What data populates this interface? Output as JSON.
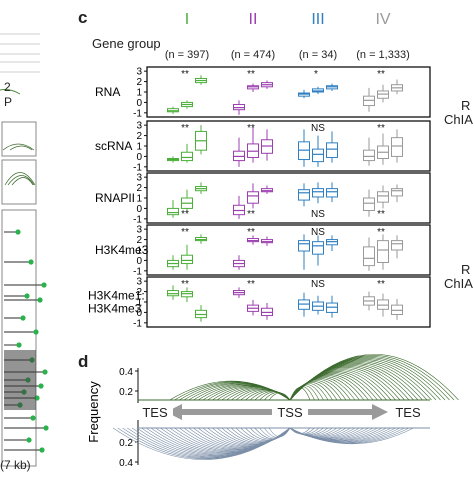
{
  "panel_c": {
    "letter": "c",
    "gene_group_label": "Gene group",
    "groups": [
      {
        "numeral": "I",
        "n_label": "(n = 397)",
        "color": "#4caf3a"
      },
      {
        "numeral": "II",
        "n_label": "(n = 474)",
        "color": "#9c3fb0"
      },
      {
        "numeral": "III",
        "n_label": "(n = 34)",
        "color": "#2f7fc1"
      },
      {
        "numeral": "IV",
        "n_label": "(n = 1,333)",
        "color": "#9a9a9a"
      }
    ],
    "right_labels": [
      "R",
      "ChIA",
      "R",
      "ChIA"
    ]
  },
  "panel_d": {
    "letter": "d",
    "ylabel": "Frequency",
    "yticks": [
      "0.4",
      "0.2",
      "0.2",
      "0.4"
    ],
    "tes_left": "TES",
    "tss": "TSS",
    "tes_right": "TES",
    "top_color": "#3d6b2f",
    "bottom_color": "#7c8fa8"
  },
  "left_panel": {
    "labels": [
      "2",
      "P",
      "(7 kb)"
    ],
    "dot_color": "#2bb24c"
  },
  "chart_data": {
    "type": "box",
    "groups": [
      "I",
      "II",
      "III",
      "IV"
    ],
    "rows": [
      {
        "name": "RNA",
        "yticks": [
          3,
          2,
          1,
          0,
          -1
        ],
        "ylim": [
          -1.4,
          3.4
        ],
        "sig": [
          "**",
          "**",
          "*",
          "**"
        ],
        "boxes": [
          [
            [
              -1.1,
              -0.9,
              -0.8,
              -0.6,
              -0.4
            ],
            [
              -0.6,
              -0.4,
              -0.2,
              0.0,
              0.2
            ],
            [
              1.7,
              1.9,
              2.1,
              2.3,
              2.6
            ]
          ],
          [
            [
              -1.2,
              -0.7,
              -0.5,
              -0.2,
              0.2
            ],
            [
              1.0,
              1.3,
              1.5,
              1.6,
              1.8
            ],
            [
              1.3,
              1.5,
              1.7,
              1.9,
              2.1
            ]
          ],
          [
            [
              0.4,
              0.6,
              0.8,
              0.9,
              1.2
            ],
            [
              0.8,
              1.0,
              1.1,
              1.3,
              1.5
            ],
            [
              1.1,
              1.3,
              1.5,
              1.6,
              1.8
            ]
          ],
          [
            [
              -0.9,
              -0.3,
              0.2,
              0.6,
              1.4
            ],
            [
              0.0,
              0.4,
              0.8,
              1.1,
              1.7
            ],
            [
              0.8,
              1.1,
              1.4,
              1.7,
              2.2
            ]
          ]
        ]
      },
      {
        "name": "scRNA",
        "yticks": [
          3,
          2,
          1,
          0,
          -1
        ],
        "ylim": [
          -1.4,
          3.4
        ],
        "sig": [
          "**",
          "**",
          "NS",
          "**"
        ],
        "boxes": [
          [
            [
              -0.6,
              -0.4,
              -0.3,
              -0.2,
              0.0
            ],
            [
              -0.6,
              -0.4,
              -0.1,
              0.4,
              1.2
            ],
            [
              0.2,
              0.6,
              1.5,
              2.4,
              3.0
            ]
          ],
          [
            [
              -1.0,
              -0.4,
              0.0,
              0.5,
              1.8
            ],
            [
              -0.6,
              -0.1,
              0.5,
              1.2,
              2.8
            ],
            [
              -0.4,
              0.3,
              1.0,
              1.6,
              2.6
            ]
          ],
          [
            [
              -1.0,
              -0.3,
              0.6,
              1.4,
              2.6
            ],
            [
              -1.0,
              -0.5,
              0.2,
              0.7,
              2.0
            ],
            [
              -0.6,
              -0.1,
              0.7,
              1.3,
              2.4
            ]
          ],
          [
            [
              -0.9,
              -0.4,
              0.0,
              0.6,
              1.8
            ],
            [
              -0.8,
              -0.2,
              0.4,
              1.0,
              2.2
            ],
            [
              -0.6,
              0.0,
              1.0,
              1.8,
              2.6
            ]
          ]
        ]
      },
      {
        "name": "RNAPII",
        "yticks": [
          3,
          2,
          1,
          0,
          -1
        ],
        "ylim": [
          -1.4,
          3.4
        ],
        "sig": [
          "**",
          "**",
          "NS",
          "**"
        ],
        "boxes": [
          [
            [
              -0.9,
              -0.6,
              -0.4,
              0.0,
              0.8
            ],
            [
              -0.3,
              0.0,
              0.5,
              1.0,
              1.8
            ],
            [
              1.4,
              1.7,
              1.9,
              2.1,
              2.5
            ]
          ],
          [
            [
              -1.0,
              -0.6,
              -0.2,
              0.3,
              1.2
            ],
            [
              0.0,
              0.5,
              1.2,
              1.6,
              2.4
            ],
            [
              1.4,
              1.6,
              1.7,
              1.9,
              2.2
            ]
          ],
          [
            [
              0.2,
              0.8,
              1.5,
              1.8,
              2.4
            ],
            [
              0.5,
              1.1,
              1.6,
              1.9,
              2.5
            ],
            [
              0.6,
              1.1,
              1.6,
              1.9,
              2.5
            ]
          ],
          [
            [
              -0.8,
              -0.2,
              0.5,
              1.0,
              1.8
            ],
            [
              0.0,
              0.6,
              1.2,
              1.6,
              2.2
            ],
            [
              0.6,
              1.2,
              1.7,
              1.9,
              2.3
            ]
          ]
        ]
      },
      {
        "name": "H3K4me3",
        "yticks": [
          3,
          2,
          1,
          0,
          -1
        ],
        "ylim": [
          -1.4,
          3.4
        ],
        "sig": [
          "**",
          "**",
          "NS",
          "**"
        ],
        "boxes": [
          [
            [
              -0.9,
              -0.6,
              -0.3,
              0.0,
              0.5
            ],
            [
              -0.9,
              -0.3,
              0.0,
              0.5,
              1.5
            ],
            [
              1.6,
              1.9,
              2.0,
              2.2,
              2.5
            ]
          ],
          [
            [
              -0.9,
              -0.6,
              -0.3,
              0.0,
              0.5
            ],
            [
              1.5,
              1.8,
              1.9,
              2.1,
              2.4
            ],
            [
              1.4,
              1.7,
              1.8,
              2.0,
              2.3
            ]
          ],
          [
            [
              -0.9,
              0.9,
              1.6,
              1.9,
              2.5
            ],
            [
              -0.5,
              0.6,
              1.4,
              1.8,
              2.4
            ],
            [
              0.9,
              1.5,
              1.8,
              2.0,
              2.4
            ]
          ],
          [
            [
              -1.0,
              -0.5,
              0.2,
              1.3,
              2.2
            ],
            [
              -0.9,
              -0.2,
              1.0,
              1.9,
              2.5
            ],
            [
              0.2,
              1.0,
              1.6,
              1.9,
              2.4
            ]
          ]
        ]
      },
      {
        "name": "H3K4me1:\nH3K4me3",
        "yticks": [
          3,
          2,
          1,
          0,
          -1
        ],
        "ylim": [
          -1.4,
          3.4
        ],
        "sig": [
          "**",
          "**",
          "NS",
          "**"
        ],
        "boxes": [
          [
            [
              1.2,
              1.6,
              1.8,
              2.1,
              2.6
            ],
            [
              1.0,
              1.5,
              1.8,
              2.0,
              2.4
            ],
            [
              -0.9,
              -0.5,
              -0.2,
              0.2,
              0.7
            ]
          ],
          [
            [
              1.4,
              1.7,
              1.9,
              2.1,
              2.4
            ],
            [
              -0.3,
              0.1,
              0.4,
              0.7,
              1.2
            ],
            [
              -0.7,
              -0.3,
              0.0,
              0.4,
              0.9
            ]
          ],
          [
            [
              -0.4,
              0.3,
              0.8,
              1.2,
              1.9
            ],
            [
              -0.2,
              0.2,
              0.6,
              1.0,
              1.6
            ],
            [
              -0.5,
              0.0,
              0.5,
              0.9,
              1.6
            ]
          ],
          [
            [
              0.2,
              0.7,
              1.1,
              1.5,
              2.0
            ],
            [
              -0.4,
              0.3,
              0.7,
              1.2,
              1.8
            ],
            [
              -0.7,
              -0.2,
              0.2,
              0.7,
              1.3
            ]
          ]
        ]
      }
    ]
  }
}
